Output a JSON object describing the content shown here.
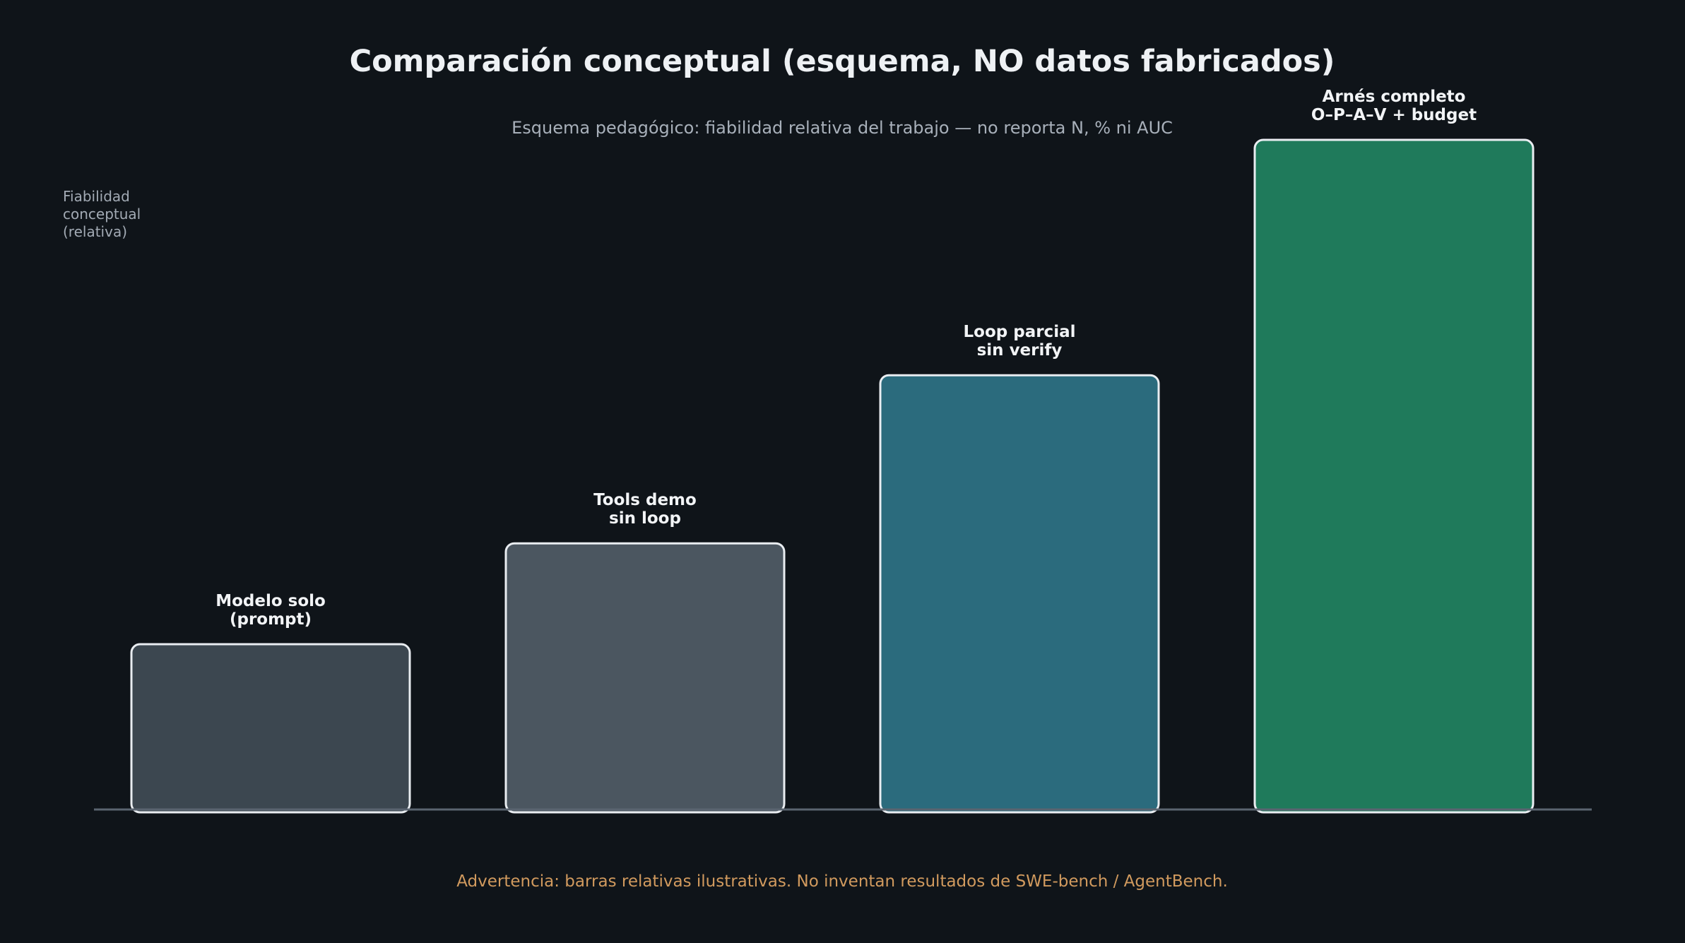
{
  "chart_data": {
    "type": "bar",
    "title": "Comparación conceptual (esquema, NO datos fabricados)",
    "subtitle": "Esquema pedagógico: fiabilidad relativa del trabajo — no reporta N, % ni AUC",
    "ylabel": [
      "Fiabilidad",
      "conceptual",
      "(relativa)"
    ],
    "xlabel": "",
    "ylim": [
      0,
      1
    ],
    "grid": false,
    "categories": [
      [
        "Modelo solo",
        "(prompt)"
      ],
      [
        "Tools demo",
        "sin loop"
      ],
      [
        "Loop parcial",
        "sin verify"
      ],
      [
        "Arnés completo",
        "O–P–A–V + budget"
      ]
    ],
    "values": [
      0.25,
      0.4,
      0.65,
      1.0
    ],
    "colors": [
      "#3c4750",
      "#4b5660",
      "#2b6b7d",
      "#1f7a5b"
    ],
    "footnote": "Advertencia: barras relativas ilustrativas. No inventan resultados de SWE-bench / AgentBench."
  }
}
